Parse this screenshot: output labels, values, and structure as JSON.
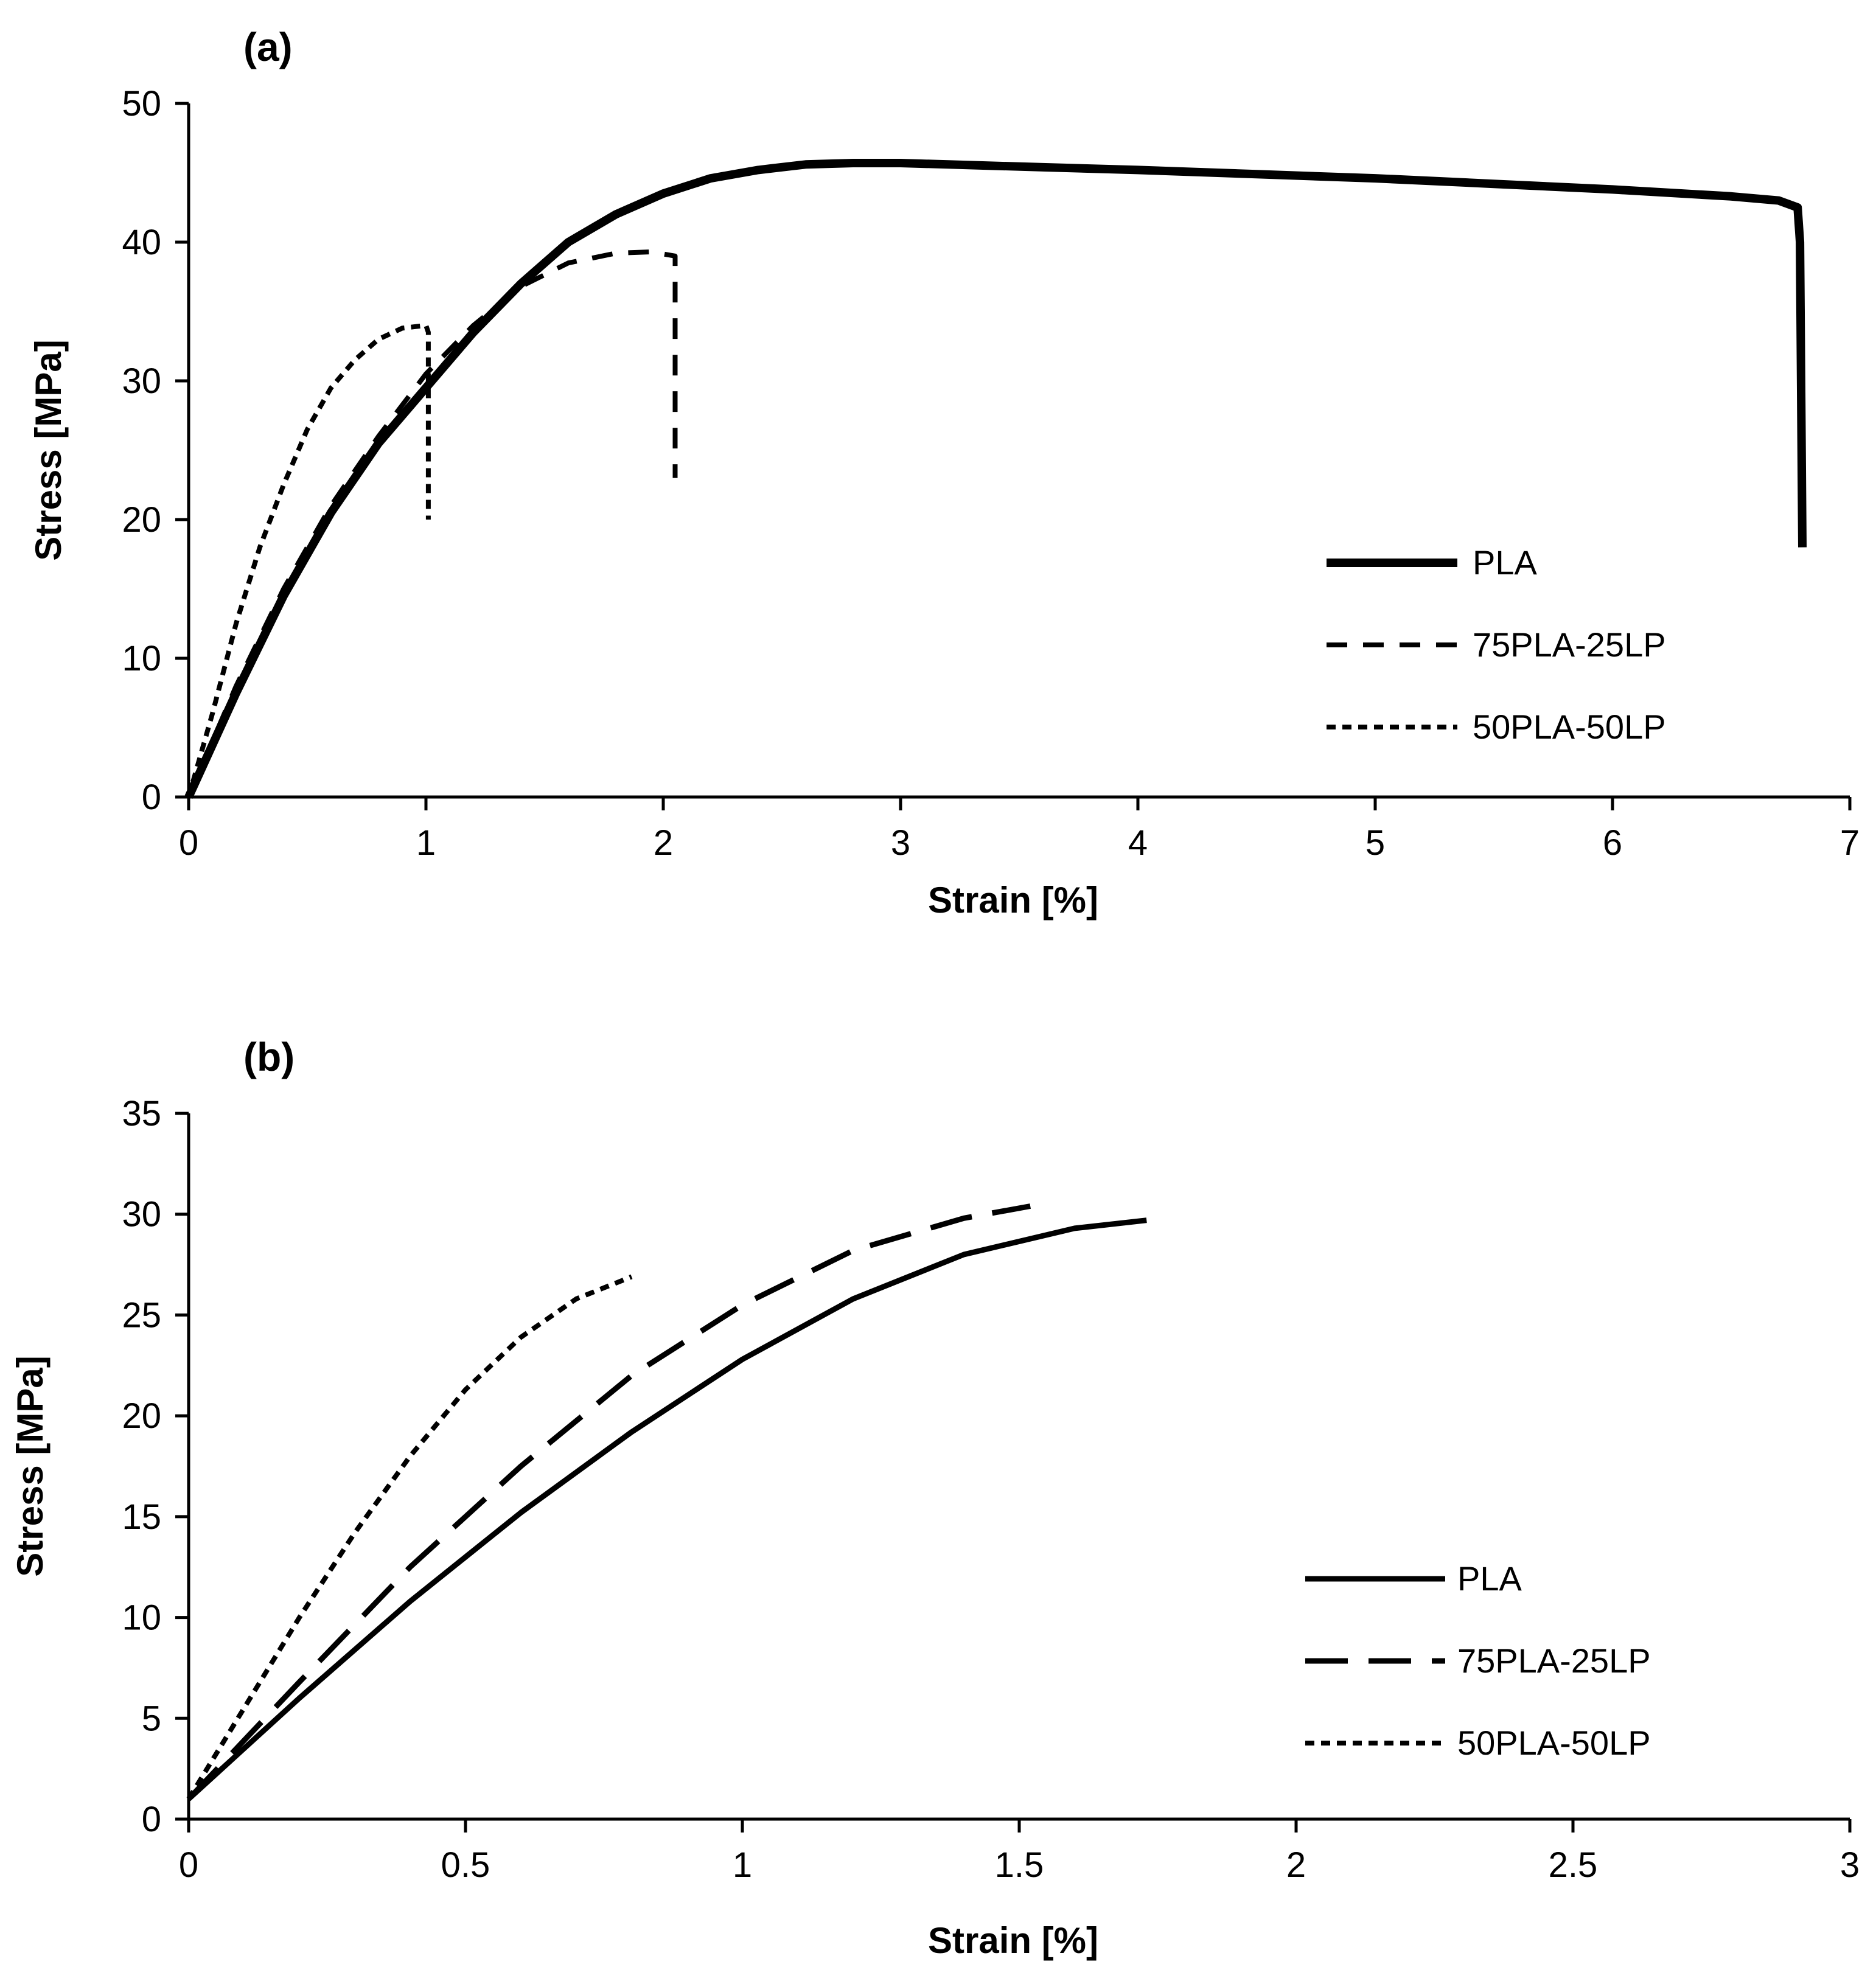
{
  "figure": {
    "description_labels": [
      "(a)",
      "(b)"
    ]
  },
  "chart_data": [
    {
      "type": "line",
      "panel_label": "(a)",
      "title": "",
      "xlabel": "Strain [%]",
      "ylabel": "Stress [MPa]",
      "xlim": [
        0,
        7
      ],
      "ylim": [
        0,
        50
      ],
      "xticks": [
        0,
        1,
        2,
        3,
        4,
        5,
        6,
        7
      ],
      "xtick_labels": [
        "0",
        "1",
        "2",
        "3",
        "4",
        "5",
        "6",
        "7"
      ],
      "yticks": [
        0,
        10,
        20,
        30,
        40,
        50
      ],
      "ytick_labels": [
        "0",
        "10",
        "20",
        "30",
        "40",
        "50"
      ],
      "grid": false,
      "legend_position": "right",
      "series": [
        {
          "name": "PLA",
          "style": "solid-thick",
          "x": [
            0,
            0.2,
            0.4,
            0.6,
            0.8,
            1.0,
            1.2,
            1.4,
            1.6,
            1.8,
            2.0,
            2.2,
            2.4,
            2.6,
            2.8,
            3.0,
            3.2,
            3.6,
            4.0,
            4.5,
            5.0,
            5.5,
            6.0,
            6.5,
            6.7,
            6.78,
            6.79,
            6.8
          ],
          "y": [
            0,
            7.5,
            14.5,
            20.5,
            25.5,
            29.5,
            33.5,
            37.0,
            40.0,
            42.0,
            43.5,
            44.6,
            45.2,
            45.6,
            45.7,
            45.7,
            45.6,
            45.4,
            45.2,
            44.9,
            44.6,
            44.2,
            43.8,
            43.3,
            43.0,
            42.5,
            40.0,
            18.0
          ]
        },
        {
          "name": "75PLA-25LP",
          "style": "dashed",
          "x": [
            0,
            0.2,
            0.4,
            0.6,
            0.8,
            1.0,
            1.2,
            1.4,
            1.6,
            1.8,
            1.95,
            2.05,
            2.05
          ],
          "y": [
            0,
            8,
            15,
            21,
            26,
            30.5,
            34,
            36.8,
            38.5,
            39.2,
            39.3,
            39,
            23
          ]
        },
        {
          "name": "50PLA-50LP",
          "style": "dotted",
          "x": [
            0,
            0.1,
            0.2,
            0.3,
            0.4,
            0.5,
            0.6,
            0.7,
            0.8,
            0.9,
            1.0,
            1.01,
            1.01
          ],
          "y": [
            0,
            6,
            12.5,
            18,
            22.5,
            26.5,
            29.5,
            31.5,
            33,
            33.8,
            34,
            33.5,
            20
          ]
        }
      ]
    },
    {
      "type": "line",
      "panel_label": "(b)",
      "title": "",
      "xlabel": "Strain [%]",
      "ylabel": "Stress [MPa]",
      "xlim": [
        0,
        3
      ],
      "ylim": [
        0,
        35
      ],
      "xticks": [
        0,
        0.5,
        1,
        1.5,
        2,
        2.5,
        3
      ],
      "xtick_labels": [
        "0",
        "0.5",
        "1",
        "1.5",
        "2",
        "2.5",
        "3"
      ],
      "yticks": [
        0,
        5,
        10,
        15,
        20,
        25,
        30,
        35
      ],
      "ytick_labels": [
        "0",
        "5",
        "10",
        "15",
        "20",
        "25",
        "30",
        "35"
      ],
      "grid": false,
      "legend_position": "right",
      "series": [
        {
          "name": "PLA",
          "style": "solid",
          "x": [
            0,
            0.2,
            0.4,
            0.6,
            0.8,
            1.0,
            1.2,
            1.4,
            1.6,
            1.73
          ],
          "y": [
            1,
            6,
            10.8,
            15.2,
            19.2,
            22.8,
            25.8,
            28.0,
            29.3,
            29.7
          ]
        },
        {
          "name": "75PLA-25LP",
          "style": "long-dash",
          "x": [
            0,
            0.2,
            0.4,
            0.6,
            0.8,
            1.0,
            1.2,
            1.4,
            1.52
          ],
          "y": [
            1,
            6.8,
            12.5,
            17.5,
            22,
            25.5,
            28.2,
            29.8,
            30.4
          ]
        },
        {
          "name": "50PLA-50LP",
          "style": "dotted",
          "x": [
            0,
            0.1,
            0.2,
            0.3,
            0.4,
            0.5,
            0.6,
            0.7,
            0.8
          ],
          "y": [
            1,
            5.5,
            10,
            14.2,
            18.0,
            21.3,
            23.9,
            25.8,
            26.9
          ]
        }
      ]
    }
  ]
}
